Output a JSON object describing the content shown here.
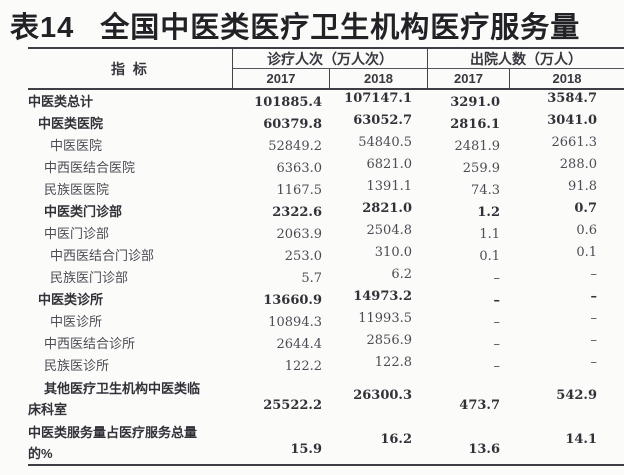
{
  "title": {
    "tag": "表14",
    "text": "全国中医类医疗卫生机构医疗服务量"
  },
  "table": {
    "indicator_header": "指 标",
    "groups": [
      {
        "label": "诊疗人次（万人次）",
        "years": [
          "2017",
          "2018"
        ]
      },
      {
        "label": "出院人数（万人）",
        "years": [
          "2017",
          "2018"
        ]
      }
    ],
    "rows": [
      {
        "label": "中医类总计",
        "level": 0,
        "bold": true,
        "double": false,
        "values": [
          "101885.4",
          "107147.1",
          "3291.0",
          "3584.7"
        ]
      },
      {
        "label": "中医类医院",
        "level": 1,
        "bold": true,
        "double": false,
        "values": [
          "60379.8",
          "63052.7",
          "2816.1",
          "3041.0"
        ]
      },
      {
        "label": "中医医院",
        "level": 3,
        "bold": false,
        "double": false,
        "values": [
          "52849.2",
          "54840.5",
          "2481.9",
          "2661.3"
        ]
      },
      {
        "label": "中西医结合医院",
        "level": 2,
        "bold": false,
        "double": false,
        "values": [
          "6363.0",
          "6821.0",
          "259.9",
          "288.0"
        ]
      },
      {
        "label": "民族医医院",
        "level": 2,
        "bold": false,
        "double": false,
        "values": [
          "1167.5",
          "1391.1",
          "74.3",
          "91.8"
        ]
      },
      {
        "label": "中医类门诊部",
        "level": 2,
        "bold": true,
        "double": false,
        "values": [
          "2322.6",
          "2821.0",
          "1.2",
          "0.7"
        ]
      },
      {
        "label": "中医门诊部",
        "level": 2,
        "bold": false,
        "double": false,
        "values": [
          "2063.9",
          "2504.8",
          "1.1",
          "0.6"
        ]
      },
      {
        "label": "中西医结合门诊部",
        "level": 3,
        "bold": false,
        "double": false,
        "values": [
          "253.0",
          "310.0",
          "0.1",
          "0.1"
        ]
      },
      {
        "label": "民族医门诊部",
        "level": 3,
        "bold": false,
        "double": false,
        "values": [
          "5.7",
          "6.2",
          "–",
          "–"
        ]
      },
      {
        "label": "中医类诊所",
        "level": 1,
        "bold": true,
        "double": false,
        "values": [
          "13660.9",
          "14973.2",
          "–",
          "–"
        ]
      },
      {
        "label": "中医诊所",
        "level": 3,
        "bold": false,
        "double": false,
        "values": [
          "10894.3",
          "11993.5",
          "–",
          "–"
        ]
      },
      {
        "label": "中西医结合诊所",
        "level": 2,
        "bold": false,
        "double": false,
        "values": [
          "2644.4",
          "2856.9",
          "–",
          "–"
        ]
      },
      {
        "label": "民族医诊所",
        "level": 2,
        "bold": false,
        "double": false,
        "values": [
          "122.2",
          "122.8",
          "–",
          "–"
        ]
      },
      {
        "label": "其他医疗卫生机构中医类临\n床科室",
        "level": 0,
        "bold": true,
        "double": true,
        "hang": true,
        "values": [
          "25522.2",
          "26300.3",
          "473.7",
          "542.9"
        ]
      },
      {
        "label": "中医类服务量占医疗服务总量\n的%",
        "level": 0,
        "bold": true,
        "double": true,
        "hang": false,
        "values": [
          "15.9",
          "16.2",
          "13.6",
          "14.1"
        ]
      }
    ]
  }
}
